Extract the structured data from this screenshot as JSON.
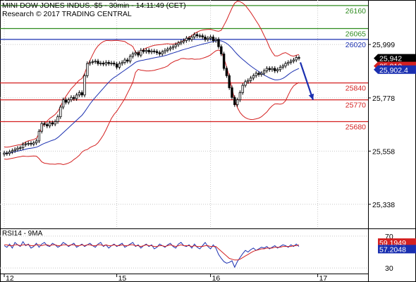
{
  "header": {
    "line1": "MINI DOW JONES INDUS.-$5 - 30min - 14:11:49 (CET)",
    "line2": "Research © 2017 TRADING CENTRAL"
  },
  "chart_data": [
    {
      "type": "candlestick",
      "title": "MINI DOW JONES INDUS.-$5 - 30min - 14:11:49 (CET)",
      "subtitle": "Research © 2017 TRADING CENTRAL",
      "x_tick_labels": [
        {
          "label": "12",
          "bar": 0
        },
        {
          "label": "15",
          "bar": 42
        },
        {
          "label": "16",
          "bar": 77
        },
        {
          "label": "17",
          "bar": 117
        }
      ],
      "y_ticks": [
        25338,
        25558,
        25778,
        25999
      ],
      "y_tick_labels": [
        "25,338",
        "25,558",
        "25,778",
        "25,999"
      ],
      "ylim": [
        25244,
        26183
      ],
      "levels": [
        {
          "value": 26160,
          "label": "26160",
          "color": "#2e8b1e"
        },
        {
          "value": 26065,
          "label": "26065",
          "color": "#2e8b1e"
        },
        {
          "value": 26020,
          "label": "26020",
          "color": "#1a2fb0"
        },
        {
          "value": 25840,
          "label": "25840",
          "color": "#d42020"
        },
        {
          "value": 25770,
          "label": "25770",
          "color": "#d42020"
        },
        {
          "value": 25680,
          "label": "25680",
          "color": "#d42020"
        }
      ],
      "price_tags": [
        {
          "label": "25,942",
          "value": 25942,
          "color": "#000000"
        },
        {
          "label": "25,910.",
          "value": 25910,
          "color": "#d42020"
        },
        {
          "label": "25,902.4",
          "value": 25895,
          "color": "#1a2fb0"
        }
      ],
      "close_series": [
        25550,
        25548,
        25555,
        25560,
        25565,
        25570,
        25572,
        25585,
        25588,
        25590,
        25587,
        25592,
        25600,
        25640,
        25672,
        25668,
        25662,
        25675,
        25670,
        25680,
        25700,
        25740,
        25770,
        25760,
        25770,
        25780,
        25775,
        25790,
        25800,
        25790,
        25870,
        25920,
        25925,
        25928,
        25930,
        25920,
        25922,
        25918,
        25925,
        25920,
        25922,
        25918,
        25905,
        25920,
        25925,
        25935,
        25930,
        25950,
        25960,
        25965,
        25955,
        25975,
        25970,
        25975,
        25968,
        25972,
        25970,
        25965,
        25960,
        25968,
        25975,
        25980,
        25985,
        25990,
        25998,
        26005,
        26010,
        26015,
        26025,
        26020,
        26030,
        26040,
        26035,
        26035,
        26030,
        26020,
        26025,
        26030,
        26015,
        26020,
        25990,
        25960,
        25900,
        25870,
        25820,
        25780,
        25750,
        25770,
        25800,
        25830,
        25845,
        25850,
        25860,
        25870,
        25880,
        25875,
        25880,
        25890,
        25900,
        25895,
        25900,
        25890,
        25895,
        25905,
        25910,
        25920,
        25925,
        25930,
        25935,
        25945,
        25942
      ],
      "forecast_arrow": {
        "from_value": 25925,
        "to_value": 25770,
        "color": "#1a2fb0"
      }
    },
    {
      "type": "line",
      "title": "RSI14 - 9MA",
      "series": [
        {
          "name": "RSI14",
          "color": "#1a2fb0",
          "values": [
            58,
            56,
            60,
            55,
            62,
            59,
            57,
            63,
            58,
            60,
            55,
            57,
            61,
            56,
            60,
            62,
            58,
            57,
            61,
            59,
            56,
            58,
            62,
            60,
            57,
            59,
            61,
            56,
            58,
            60,
            57,
            59,
            61,
            58,
            56,
            60,
            62,
            57,
            59,
            55,
            58,
            60,
            57,
            59,
            61,
            56,
            58,
            60,
            62,
            57,
            59,
            55,
            58,
            60,
            57,
            59,
            54,
            56,
            60,
            58,
            56,
            59,
            61,
            57,
            55,
            60,
            62,
            58,
            57,
            59,
            55,
            60,
            56,
            54,
            58,
            62,
            57,
            54,
            59,
            55,
            47,
            42,
            38,
            36,
            37,
            39,
            31,
            38,
            43,
            48,
            52,
            50,
            53,
            55,
            52,
            54,
            56,
            55,
            57,
            54,
            56,
            58,
            55,
            57,
            59,
            58,
            56,
            59,
            57,
            60,
            57
          ]
        },
        {
          "name": "9MA",
          "color": "#d42020",
          "values": [
            59,
            59,
            58,
            58,
            59,
            59,
            58,
            59,
            59,
            59,
            58,
            58,
            59,
            59,
            58,
            59,
            59,
            58,
            59,
            59,
            58,
            58,
            59,
            59,
            58,
            59,
            59,
            58,
            58,
            59,
            58,
            59,
            59,
            58,
            58,
            59,
            59,
            58,
            59,
            58,
            58,
            59,
            58,
            58,
            59,
            58,
            58,
            59,
            59,
            58,
            58,
            57,
            58,
            59,
            58,
            58,
            57,
            57,
            58,
            58,
            57,
            58,
            59,
            58,
            57,
            58,
            59,
            58,
            58,
            58,
            57,
            58,
            57,
            57,
            57,
            58,
            58,
            57,
            57,
            57,
            54,
            51,
            48,
            45,
            42,
            41,
            40,
            40,
            41,
            43,
            45,
            47,
            49,
            51,
            52,
            53,
            54,
            54,
            55,
            55,
            55,
            56,
            56,
            56,
            57,
            57,
            57,
            57,
            58,
            58,
            59
          ]
        }
      ],
      "y_ticks": [
        30,
        70
      ],
      "y_tick_labels": [
        "30",
        "70"
      ],
      "ylim": [
        23,
        77
      ],
      "price_tags": [
        {
          "label": "59.1949",
          "value": 59.19,
          "color": "#d42020"
        },
        {
          "label": "57.2048",
          "value": 57.2,
          "color": "#1a2fb0"
        }
      ]
    }
  ],
  "colors": {
    "up": "#000000",
    "band": "#d42020",
    "ma": "#1a2fb0",
    "grid": "#c8c8c8"
  }
}
